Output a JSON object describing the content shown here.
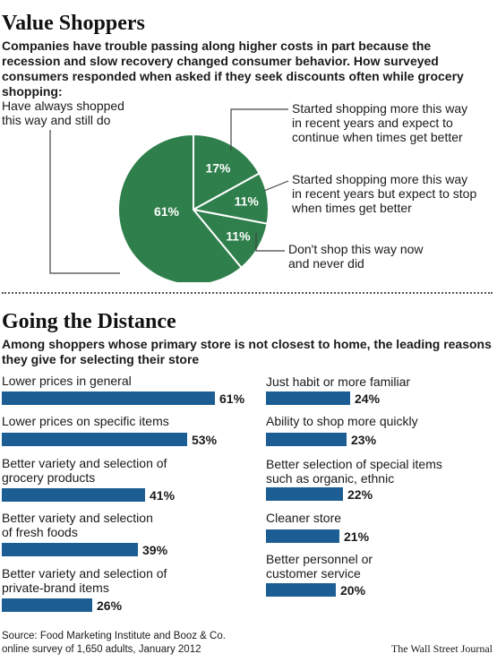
{
  "colors": {
    "pie": "#2e7f4b",
    "bar": "#1c5e93",
    "leader": "#444444"
  },
  "chart_data": [
    {
      "type": "pie",
      "title": "Value Shoppers",
      "subtitle": "Companies have trouble passing along higher costs in part because the recession and slow recovery changed consumer behavior. How surveyed consumers responded when asked if they seek discounts often while grocery shopping:",
      "slices": [
        {
          "label": "Started shopping more this way\nin recent years and expect to\ncontinue when times get better",
          "value": 17,
          "display": "17%"
        },
        {
          "label": "Started shopping more this way\nin recent years but expect to stop\nwhen times get better",
          "value": 11,
          "display": "11%"
        },
        {
          "label": "Don't shop this way now\nand never did",
          "value": 11,
          "display": "11%"
        },
        {
          "label": "Have always shopped\nthis way and still do",
          "value": 61,
          "display": "61%"
        }
      ]
    },
    {
      "type": "bar",
      "title": "Going the Distance",
      "subtitle": "Among shoppers whose primary store is not closest to home, the leading reasons they give for selecting their store",
      "bars": [
        {
          "label": "Lower prices in general",
          "value": 61,
          "display": "61%"
        },
        {
          "label": "Lower prices on specific items",
          "value": 53,
          "display": "53%"
        },
        {
          "label": "Better variety and selection of\ngrocery products",
          "value": 41,
          "display": "41%"
        },
        {
          "label": "Better variety and selection\nof fresh foods",
          "value": 39,
          "display": "39%"
        },
        {
          "label": "Better variety and selection of\nprivate-brand items",
          "value": 26,
          "display": "26%"
        },
        {
          "label": "Just habit or more familiar",
          "value": 24,
          "display": "24%"
        },
        {
          "label": "Ability to shop more quickly",
          "value": 23,
          "display": "23%"
        },
        {
          "label": "Better selection of special items\nsuch as organic, ethnic",
          "value": 22,
          "display": "22%"
        },
        {
          "label": "Cleaner store",
          "value": 21,
          "display": "21%"
        },
        {
          "label": "Better personnel or\ncustomer service",
          "value": 20,
          "display": "20%"
        }
      ]
    }
  ],
  "footer": {
    "source": "Source: Food Marketing Institute and Booz & Co.\nonline survey of 1,650 adults, January 2012",
    "credit": "The Wall Street Journal"
  }
}
